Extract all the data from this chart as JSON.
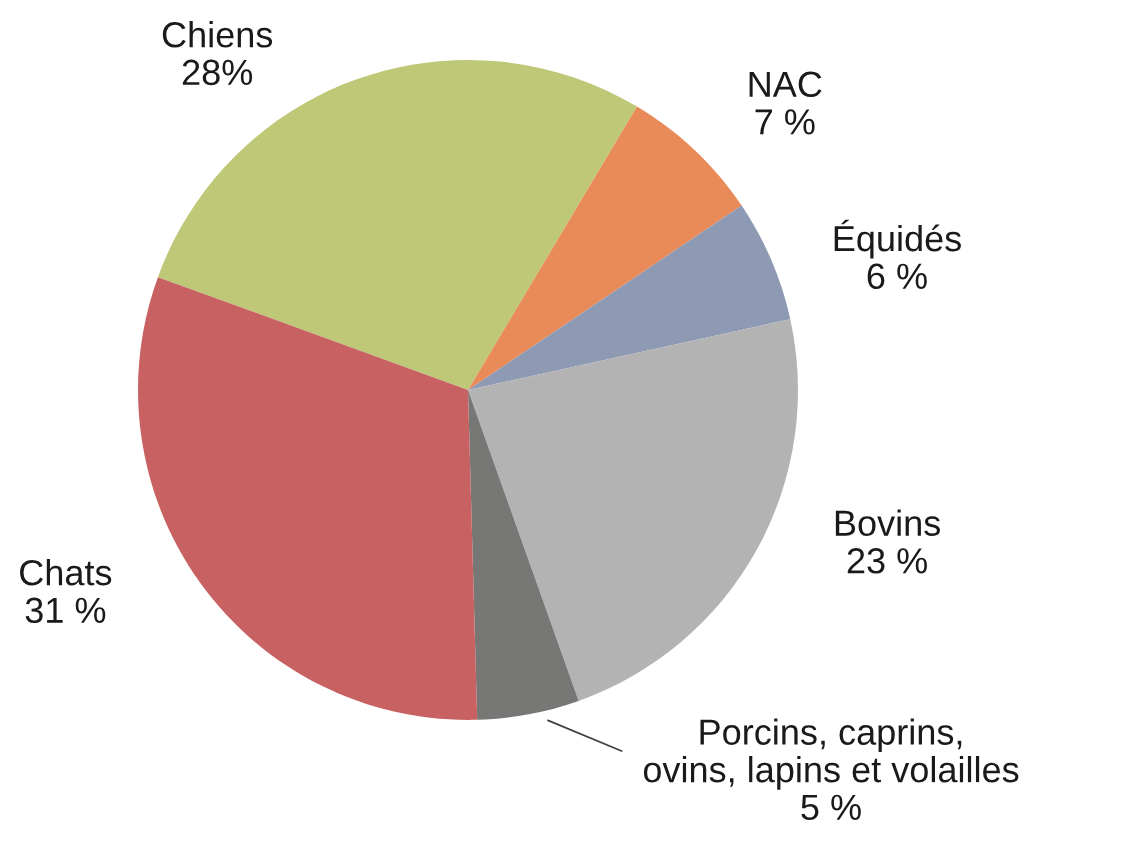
{
  "chart_data": {
    "type": "pie",
    "categories": [
      "Chiens",
      "NAC",
      "Équidés",
      "Bovins",
      "Porcins, caprins,\novins, lapins et volailles",
      "Chats"
    ],
    "values": [
      28,
      7,
      6,
      23,
      5,
      31
    ],
    "colors": [
      "#bec877",
      "#e88b59",
      "#8e99b4",
      "#b3b3b3",
      "#777776",
      "#c86262"
    ],
    "value_labels": [
      "28%",
      "7 %",
      "6 %",
      "23 %",
      "5 %",
      "31 %"
    ]
  }
}
